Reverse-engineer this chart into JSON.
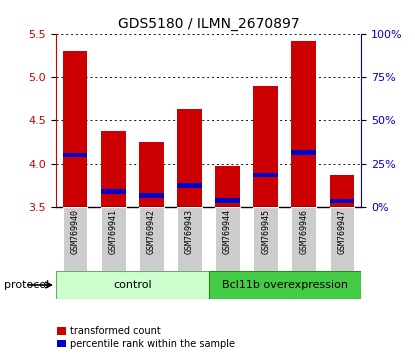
{
  "title": "GDS5180 / ILMN_2670897",
  "samples": [
    "GSM769940",
    "GSM769941",
    "GSM769942",
    "GSM769943",
    "GSM769944",
    "GSM769945",
    "GSM769946",
    "GSM769947"
  ],
  "transformed_count": [
    5.3,
    4.38,
    4.25,
    4.63,
    3.97,
    4.9,
    5.41,
    3.87
  ],
  "percentile_rank": [
    4.1,
    3.68,
    3.63,
    3.75,
    3.58,
    3.87,
    4.13,
    3.57
  ],
  "bar_bottom": 3.5,
  "ylim": [
    3.5,
    5.5
  ],
  "yticks_left": [
    3.5,
    4.0,
    4.5,
    5.0,
    5.5
  ],
  "yticks_right_pct": [
    0,
    25,
    50,
    75,
    100
  ],
  "bar_color": "#cc0000",
  "percentile_color": "#0000cc",
  "bar_width": 0.65,
  "groups": [
    {
      "label": "control",
      "start": 0,
      "end": 4,
      "color": "#ccffcc",
      "edgecolor": "#66aa66"
    },
    {
      "label": "Bcl11b overexpression",
      "start": 4,
      "end": 8,
      "color": "#44cc44",
      "edgecolor": "#228822"
    }
  ],
  "protocol_label": "protocol",
  "left_axis_color": "#cc0000",
  "right_axis_color": "#0000cc",
  "bg_color": "#ffffff",
  "sample_box_color": "#cccccc",
  "legend": [
    {
      "color": "#cc0000",
      "label": "transformed count"
    },
    {
      "color": "#0000cc",
      "label": "percentile rank within the sample"
    }
  ]
}
